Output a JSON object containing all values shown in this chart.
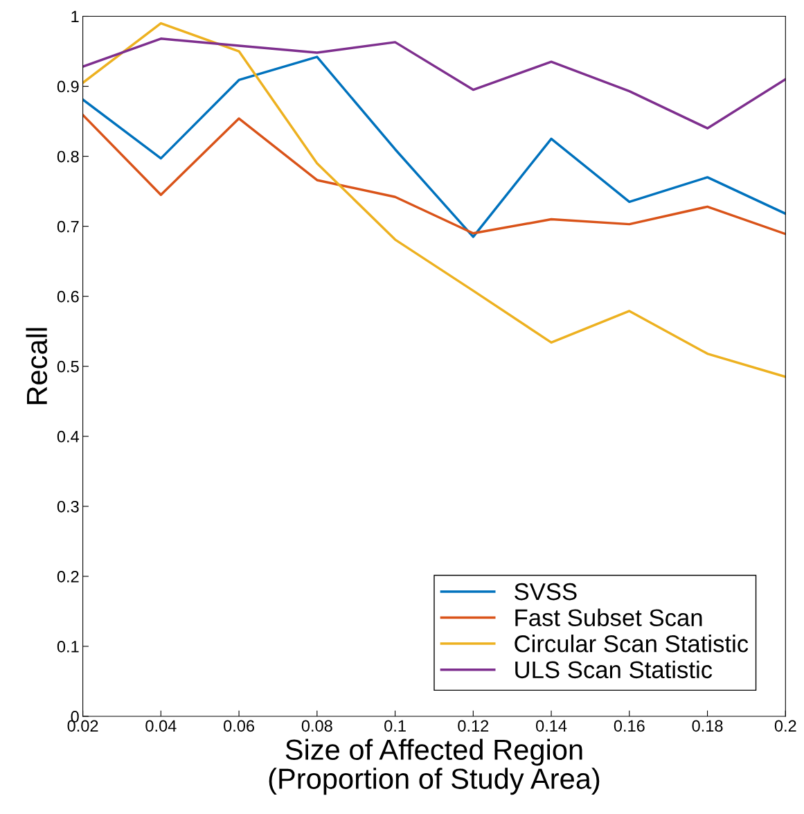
{
  "chart_data": {
    "type": "line",
    "xlabel": "Size of Affected Region\n(Proportion of Study Area)",
    "ylabel": "Recall",
    "x": [
      0.02,
      0.04,
      0.06,
      0.08,
      0.1,
      0.12,
      0.14,
      0.16,
      0.18,
      0.2
    ],
    "series": [
      {
        "name": "SVSS",
        "color": "#0072bd",
        "values": [
          0.881,
          0.797,
          0.909,
          0.942,
          0.81,
          0.685,
          0.825,
          0.735,
          0.77,
          0.718
        ]
      },
      {
        "name": "Fast Subset Scan",
        "color": "#d95319",
        "values": [
          0.859,
          0.745,
          0.854,
          0.766,
          0.742,
          0.69,
          0.71,
          0.703,
          0.728,
          0.689
        ]
      },
      {
        "name": "Circular Scan Statistic",
        "color": "#edb120",
        "values": [
          0.905,
          0.99,
          0.95,
          0.79,
          0.681,
          0.608,
          0.534,
          0.579,
          0.518,
          0.485
        ]
      },
      {
        "name": "ULS Scan Statistic",
        "color": "#7e2f8e",
        "values": [
          0.928,
          0.968,
          0.958,
          0.948,
          0.963,
          0.895,
          0.935,
          0.893,
          0.84,
          0.91
        ]
      }
    ],
    "xlim": [
      0.02,
      0.2
    ],
    "xticks": [
      0.02,
      0.04,
      0.06,
      0.08,
      0.1,
      0.12,
      0.14,
      0.16,
      0.18,
      0.2
    ],
    "ylim": [
      0,
      1
    ],
    "yticks": [
      0,
      0.1,
      0.2,
      0.3,
      0.4,
      0.5,
      0.6,
      0.7,
      0.8,
      0.9,
      1
    ],
    "grid": false,
    "legend": "bottom right",
    "marker": "none",
    "line_style": "solid"
  }
}
